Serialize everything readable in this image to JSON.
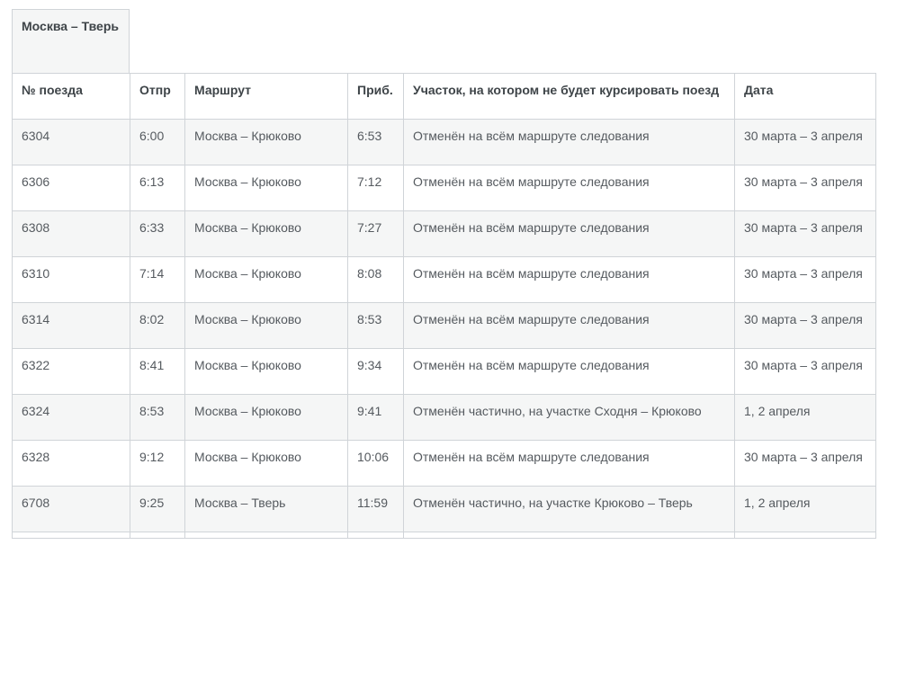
{
  "section_title": "Москва – Тверь",
  "columns": [
    "№ поезда",
    "Отпр",
    "Маршрут",
    "Приб.",
    "Участок, на котором не будет курсировать поезд",
    "Дата"
  ],
  "rows": [
    [
      "6304",
      "6:00",
      "Москва – Крюково",
      "6:53",
      "Отменён на всём маршруте следования",
      "30 марта – 3 апреля"
    ],
    [
      "6306",
      "6:13",
      "Москва – Крюково",
      "7:12",
      "Отменён на всём маршруте следования",
      "30 марта – 3 апреля"
    ],
    [
      "6308",
      "6:33",
      "Москва – Крюково",
      "7:27",
      "Отменён на всём маршруте следования",
      "30 марта – 3 апреля"
    ],
    [
      "6310",
      "7:14",
      "Москва – Крюково",
      "8:08",
      "Отменён на всём маршруте следования",
      "30 марта – 3 апреля"
    ],
    [
      "6314",
      "8:02",
      "Москва – Крюково",
      "8:53",
      "Отменён на всём маршруте следования",
      "30 марта – 3 апреля"
    ],
    [
      "6322",
      "8:41",
      "Москва – Крюково",
      "9:34",
      "Отменён на всём маршруте следования",
      "30 марта – 3 апреля"
    ],
    [
      "6324",
      "8:53",
      "Москва – Крюково",
      "9:41",
      "Отменён частично, на участке Сходня – Крюково",
      "1, 2 апреля"
    ],
    [
      "6328",
      "9:12",
      "Москва – Крюково",
      "10:06",
      "Отменён на всём маршруте следования",
      "30 марта – 3 апреля"
    ],
    [
      "6708",
      "9:25",
      "Москва – Тверь",
      "11:59",
      "Отменён частично, на участке Крюково – Тверь",
      "1, 2 апреля"
    ]
  ]
}
